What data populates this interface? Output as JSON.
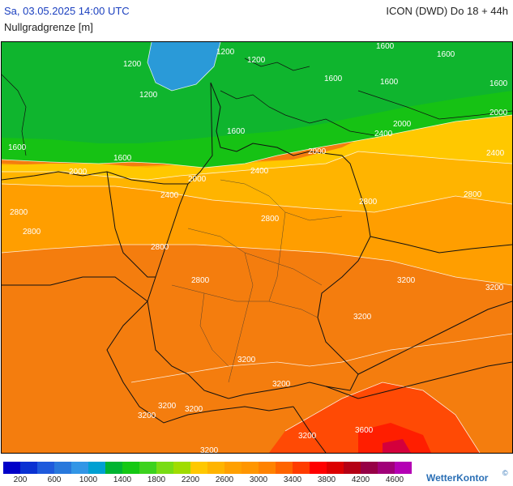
{
  "header": {
    "datetime": "Sa, 03.05.2025 14:00 UTC",
    "model": "ICON (DWD) Do 18 + 44h",
    "parameter": "Nullgradgrenze [m]"
  },
  "legend": {
    "colors": [
      "#0000c8",
      "#0a32d2",
      "#1e5adc",
      "#2878dc",
      "#3296e6",
      "#00a0d2",
      "#00b432",
      "#14c814",
      "#3cd21e",
      "#78dc14",
      "#a0dc00",
      "#ffc800",
      "#ffb400",
      "#ffa000",
      "#ff9600",
      "#ff8200",
      "#ff6400",
      "#ff3c00",
      "#ff0000",
      "#dc0000",
      "#b40014",
      "#960046",
      "#a00078",
      "#b400b4"
    ],
    "labels": [
      "200",
      "600",
      "1000",
      "1400",
      "1800",
      "2200",
      "2600",
      "3000",
      "3400",
      "3800",
      "4200",
      "4600"
    ]
  },
  "contour_labels": [
    "1200",
    "1200",
    "1200",
    "1200",
    "1600",
    "1600",
    "1600",
    "1600",
    "1600",
    "1600",
    "1600",
    "1600",
    "2000",
    "2000",
    "2000",
    "2000",
    "2000",
    "2400",
    "2400",
    "2400",
    "2400",
    "2800",
    "2800",
    "2800",
    "2800",
    "2800",
    "2800",
    "2800",
    "3200",
    "3200",
    "3200",
    "3200",
    "3200",
    "3200",
    "3200",
    "3200",
    "3600",
    "3200",
    "3200"
  ],
  "brand": {
    "name": "WetterKontor",
    "mark": "©"
  }
}
